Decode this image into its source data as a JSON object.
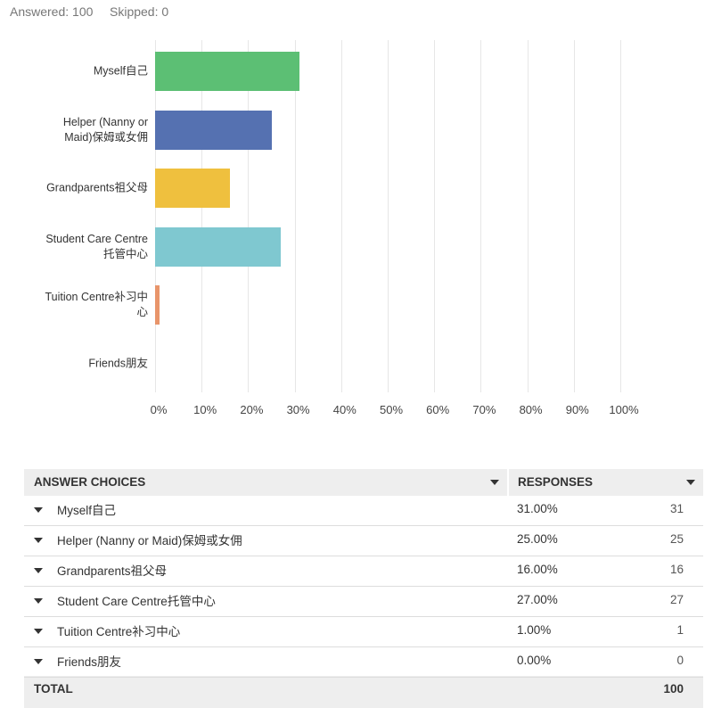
{
  "header": {
    "answered_label": "Answered:",
    "answered": 100,
    "skipped_label": "Skipped:",
    "skipped": 0
  },
  "chart_data": {
    "type": "bar",
    "orientation": "horizontal",
    "categories": [
      "Myself自己",
      "Helper (Nanny or Maid)保姆或女佣",
      "Grandparents祖父母",
      "Student Care Centre托管中心",
      "Tuition Centre补习中心",
      "Friends朋友"
    ],
    "values": [
      31,
      25,
      16,
      27,
      1,
      0
    ],
    "colors": [
      "#5cbf74",
      "#5571b1",
      "#efc03e",
      "#7fc8d0",
      "#e8956b",
      "#9b87c7"
    ],
    "xlim": [
      0,
      100
    ],
    "xticks": [
      {
        "value": 0,
        "label": "0%"
      },
      {
        "value": 10,
        "label": "10%"
      },
      {
        "value": 20,
        "label": "20%"
      },
      {
        "value": 30,
        "label": "30%"
      },
      {
        "value": 40,
        "label": "40%"
      },
      {
        "value": 50,
        "label": "50%"
      },
      {
        "value": 60,
        "label": "60%"
      },
      {
        "value": 70,
        "label": "70%"
      },
      {
        "value": 80,
        "label": "80%"
      },
      {
        "value": 90,
        "label": "90%"
      },
      {
        "value": 100,
        "label": "100%"
      }
    ],
    "grid": true
  },
  "table": {
    "headers": [
      "ANSWER CHOICES",
      "RESPONSES"
    ],
    "rows": [
      {
        "choice": "Myself自己",
        "percent": "31.00%",
        "count": 31
      },
      {
        "choice": "Helper (Nanny or Maid)保姆或女佣",
        "percent": "25.00%",
        "count": 25
      },
      {
        "choice": "Grandparents祖父母",
        "percent": "16.00%",
        "count": 16
      },
      {
        "choice": "Student Care Centre托管中心",
        "percent": "27.00%",
        "count": 27
      },
      {
        "choice": "Tuition Centre补习中心",
        "percent": "1.00%",
        "count": 1
      },
      {
        "choice": "Friends朋友",
        "percent": "0.00%",
        "count": 0
      }
    ],
    "total_label": "TOTAL",
    "total": 100
  }
}
